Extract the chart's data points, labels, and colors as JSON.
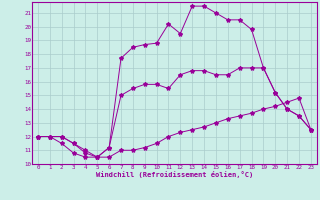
{
  "xlabel": "Windchill (Refroidissement éolien,°C)",
  "bg_color": "#cceee8",
  "grid_color": "#aacccc",
  "line_color": "#990099",
  "xlim": [
    -0.5,
    23.5
  ],
  "ylim": [
    10,
    21.8
  ],
  "xticks": [
    0,
    1,
    2,
    3,
    4,
    5,
    6,
    7,
    8,
    9,
    10,
    11,
    12,
    13,
    14,
    15,
    16,
    17,
    18,
    19,
    20,
    21,
    22,
    23
  ],
  "yticks": [
    10,
    11,
    12,
    13,
    14,
    15,
    16,
    17,
    18,
    19,
    20,
    21
  ],
  "curve1_x": [
    0,
    1,
    2,
    3,
    4,
    5,
    6,
    7,
    8,
    9,
    10,
    11,
    12,
    13,
    14,
    15,
    16,
    17,
    18,
    19,
    20,
    21,
    22,
    23
  ],
  "curve1_y": [
    12,
    12,
    12,
    11.5,
    11,
    10.5,
    10.5,
    11,
    11,
    11.2,
    11.5,
    12,
    12.3,
    12.5,
    12.7,
    13,
    13.3,
    13.5,
    13.7,
    14,
    14.2,
    14.5,
    14.8,
    12.5
  ],
  "curve2_x": [
    0,
    1,
    2,
    3,
    4,
    5,
    6,
    7,
    8,
    9,
    10,
    11,
    12,
    13,
    14,
    15,
    16,
    17,
    18,
    19,
    20,
    21,
    22,
    23
  ],
  "curve2_y": [
    12,
    12,
    11.5,
    10.8,
    10.5,
    10.5,
    11.2,
    17.7,
    18.5,
    18.7,
    18.8,
    20.2,
    19.5,
    21.5,
    21.5,
    21,
    20.5,
    20.5,
    19.8,
    17,
    15.2,
    14,
    13.5,
    12.5
  ],
  "curve3_x": [
    0,
    1,
    2,
    3,
    4,
    5,
    6,
    7,
    8,
    9,
    10,
    11,
    12,
    13,
    14,
    15,
    16,
    17,
    18,
    19,
    20,
    21,
    22,
    23
  ],
  "curve3_y": [
    12,
    12,
    12,
    11.5,
    10.8,
    10.5,
    11.2,
    15,
    15.5,
    15.8,
    15.8,
    15.5,
    16.5,
    16.8,
    16.8,
    16.5,
    16.5,
    17,
    17,
    17,
    15.2,
    14,
    13.5,
    12.5
  ]
}
